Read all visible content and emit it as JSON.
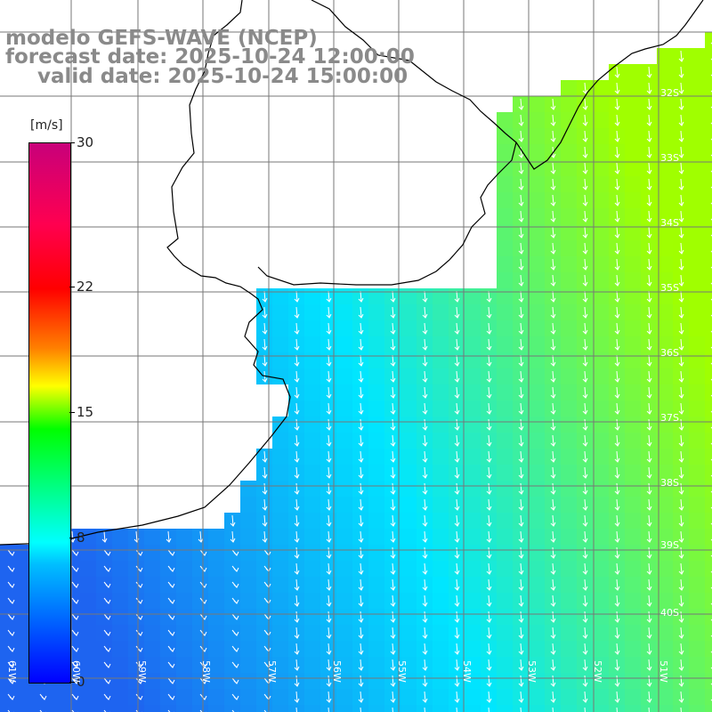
{
  "titles": {
    "model": "modelo GEFS-WAVE (NCEP)",
    "forecast": "forecast date: 2025-10-24 12:00:00",
    "valid": "valid date: 2025-10-24 15:00:00"
  },
  "colorbar": {
    "unit": "[m/s]",
    "ticks": [
      "30",
      "22",
      "15",
      "8",
      "0"
    ],
    "tick_values": [
      30,
      22,
      15,
      8,
      0
    ],
    "min": 0,
    "max": 30
  },
  "map": {
    "lat_labels": [
      "32S",
      "33S",
      "34S",
      "35S",
      "36S",
      "37S",
      "38S",
      "39S",
      "40S"
    ],
    "lon_labels": [
      "61W",
      "60W",
      "59W",
      "58W",
      "57W",
      "56W",
      "55W",
      "54W",
      "53W",
      "52W",
      "51W"
    ],
    "colors": {
      "land": "#ffffff",
      "coast": "#000000",
      "grid": "#777777",
      "low_wind": "#1e64f0",
      "mid_wind": "#00e6ff",
      "high_wind": "#a0ff00",
      "arrows": "#ffffff"
    }
  }
}
